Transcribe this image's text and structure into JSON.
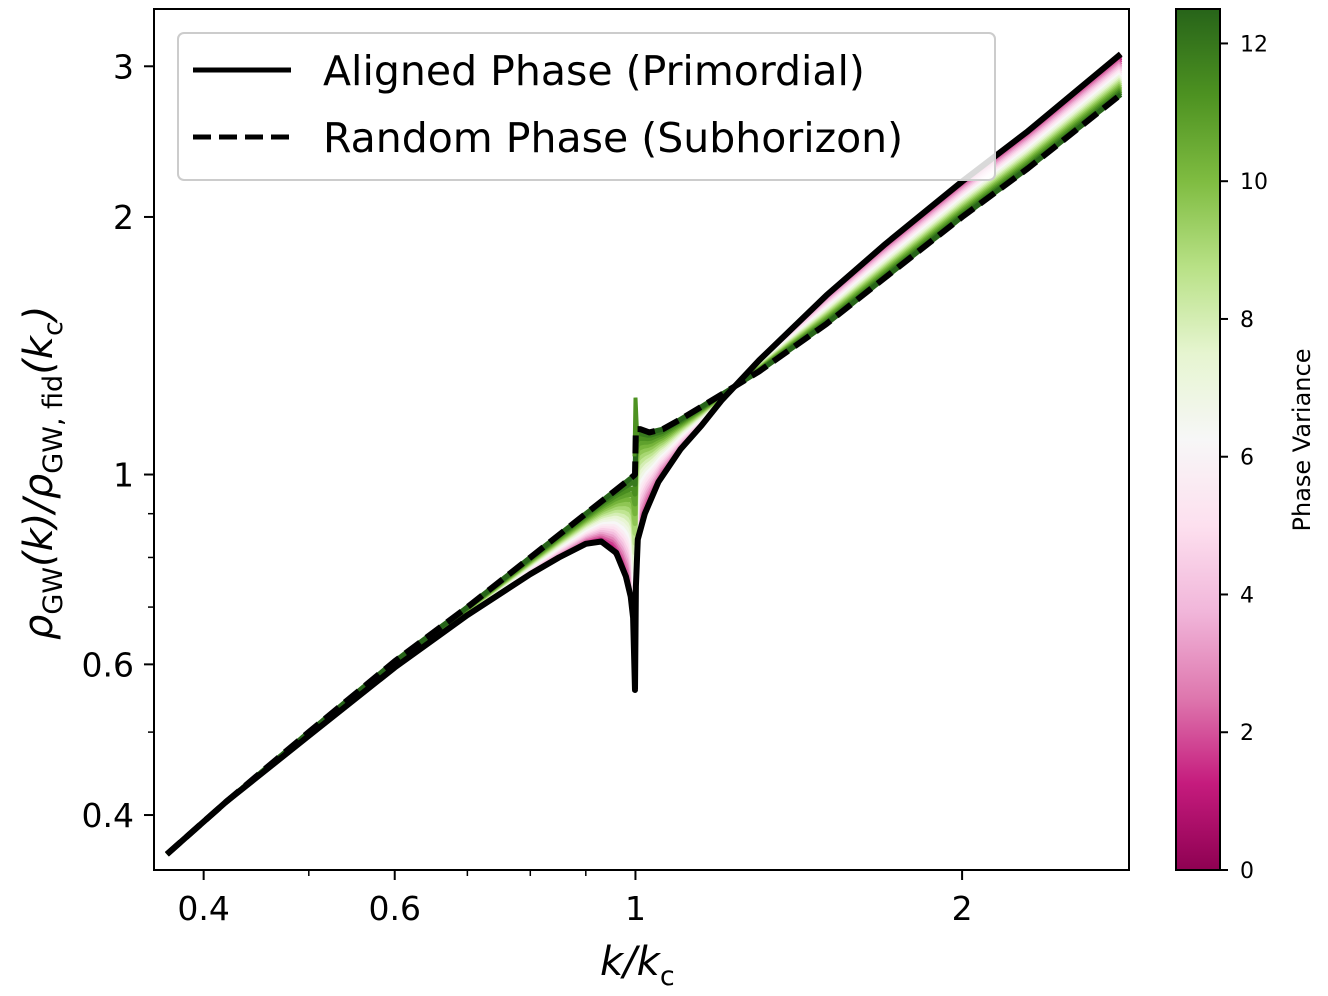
{
  "chart_data": {
    "type": "line",
    "x_scale": "log",
    "y_scale": "log",
    "xlim": [
      0.36,
      2.85
    ],
    "ylim": [
      0.345,
      3.5
    ],
    "x_ticks": [
      {
        "value": 0.4,
        "label": "0.4"
      },
      {
        "value": 0.6,
        "label": "0.6"
      },
      {
        "value": 1,
        "label": "1"
      },
      {
        "value": 2,
        "label": "2"
      }
    ],
    "x_minor_ticks": [
      0.5,
      0.7,
      0.8,
      0.9
    ],
    "y_ticks": [
      {
        "value": 0.4,
        "label": "0.4"
      },
      {
        "value": 0.6,
        "label": "0.6"
      },
      {
        "value": 1,
        "label": "1"
      },
      {
        "value": 2,
        "label": "2"
      },
      {
        "value": 3,
        "label": "3"
      }
    ],
    "y_minor_ticks": [
      0.5,
      0.7,
      0.8,
      0.9
    ],
    "xlabel": {
      "main": "k/k",
      "sub": "c"
    },
    "ylabel": {
      "rho1": "ρ",
      "sub1": "GW",
      "mid": "(k)/",
      "rho2": "ρ",
      "sub2": "GW, fid",
      "end": "(k",
      "endsub": "c",
      "close": ")"
    },
    "legend": {
      "placement": "upper-left",
      "entries": [
        {
          "label": "Aligned Phase (Primordial)",
          "style": "solid"
        },
        {
          "label": "Random Phase (Subhorizon)",
          "style": "dashed"
        }
      ]
    },
    "colorbar": {
      "label": "Phase Variance",
      "range": [
        0,
        12.5
      ],
      "ticks": [
        0,
        2,
        4,
        6,
        8,
        10,
        12
      ],
      "colormap": [
        "#8e0152",
        "#c51b7d",
        "#de77ae",
        "#f1b6da",
        "#fde0ef",
        "#f7f7f7",
        "#e6f5d0",
        "#b8e186",
        "#7fbc41",
        "#4d9221",
        "#276419"
      ]
    },
    "series": [
      {
        "style": "solid",
        "color": "#000000",
        "x": [
          0.37,
          0.42,
          0.5,
          0.6,
          0.7,
          0.8,
          0.85,
          0.9,
          0.93,
          0.96,
          0.98,
          0.99,
          0.995,
          0.999,
          1.001,
          1.005,
          1.02,
          1.05,
          1.1,
          1.15,
          1.2,
          1.3,
          1.5,
          1.7,
          2.0,
          2.3,
          2.8
        ],
        "y": [
          0.36,
          0.415,
          0.495,
          0.595,
          0.685,
          0.765,
          0.8,
          0.83,
          0.835,
          0.81,
          0.76,
          0.72,
          0.68,
          0.56,
          0.74,
          0.84,
          0.9,
          0.98,
          1.07,
          1.14,
          1.22,
          1.36,
          1.62,
          1.86,
          2.2,
          2.52,
          3.1
        ]
      },
      {
        "style": "dashed",
        "color": "#000000",
        "x": [
          0.37,
          0.42,
          0.5,
          0.6,
          0.7,
          0.8,
          0.9,
          0.95,
          0.99,
          0.999,
          1.001,
          1.01,
          1.03,
          1.06,
          1.1,
          1.2,
          1.3,
          1.5,
          1.7,
          2.0,
          2.3,
          2.8
        ],
        "y": [
          0.36,
          0.415,
          0.5,
          0.605,
          0.7,
          0.8,
          0.9,
          0.95,
          0.99,
          1.0,
          1.13,
          1.13,
          1.12,
          1.13,
          1.16,
          1.24,
          1.32,
          1.5,
          1.7,
          2.0,
          2.28,
          2.78
        ]
      }
    ]
  }
}
